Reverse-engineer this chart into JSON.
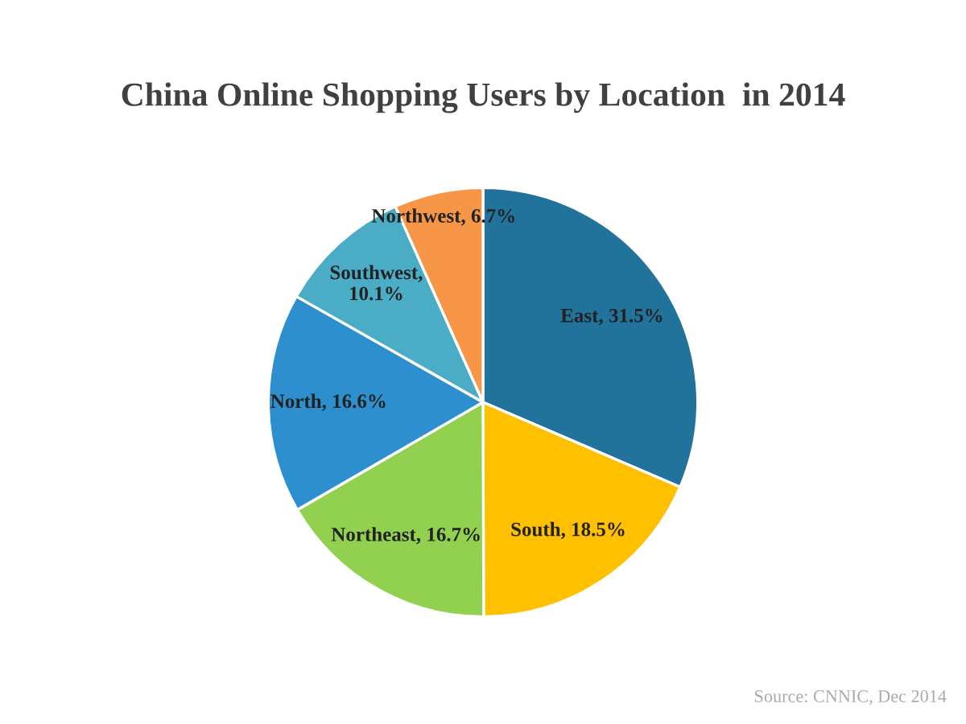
{
  "chart_data": {
    "type": "pie",
    "title": "China Online Shopping Users by Location  in 2014",
    "categories": [
      null,
      null,
      null,
      null,
      null,
      null
    ],
    "values": [
      31.5,
      18.5,
      16.7,
      16.6,
      10.1,
      6.7
    ],
    "value_labels": [
      "East, 31.5%",
      "South, 18.5%",
      "Northeast, 16.7%",
      "North, 16.6%",
      "Southwest,\n10.1%",
      "Northwest, 6.7%"
    ],
    "colors": [
      "#22739b",
      "#ffc000",
      "#92d050",
      "#2e8fce",
      "#4bacc6",
      "#f79646"
    ],
    "annotations": [
      "Source: CNNIC, Dec 2014"
    ]
  }
}
